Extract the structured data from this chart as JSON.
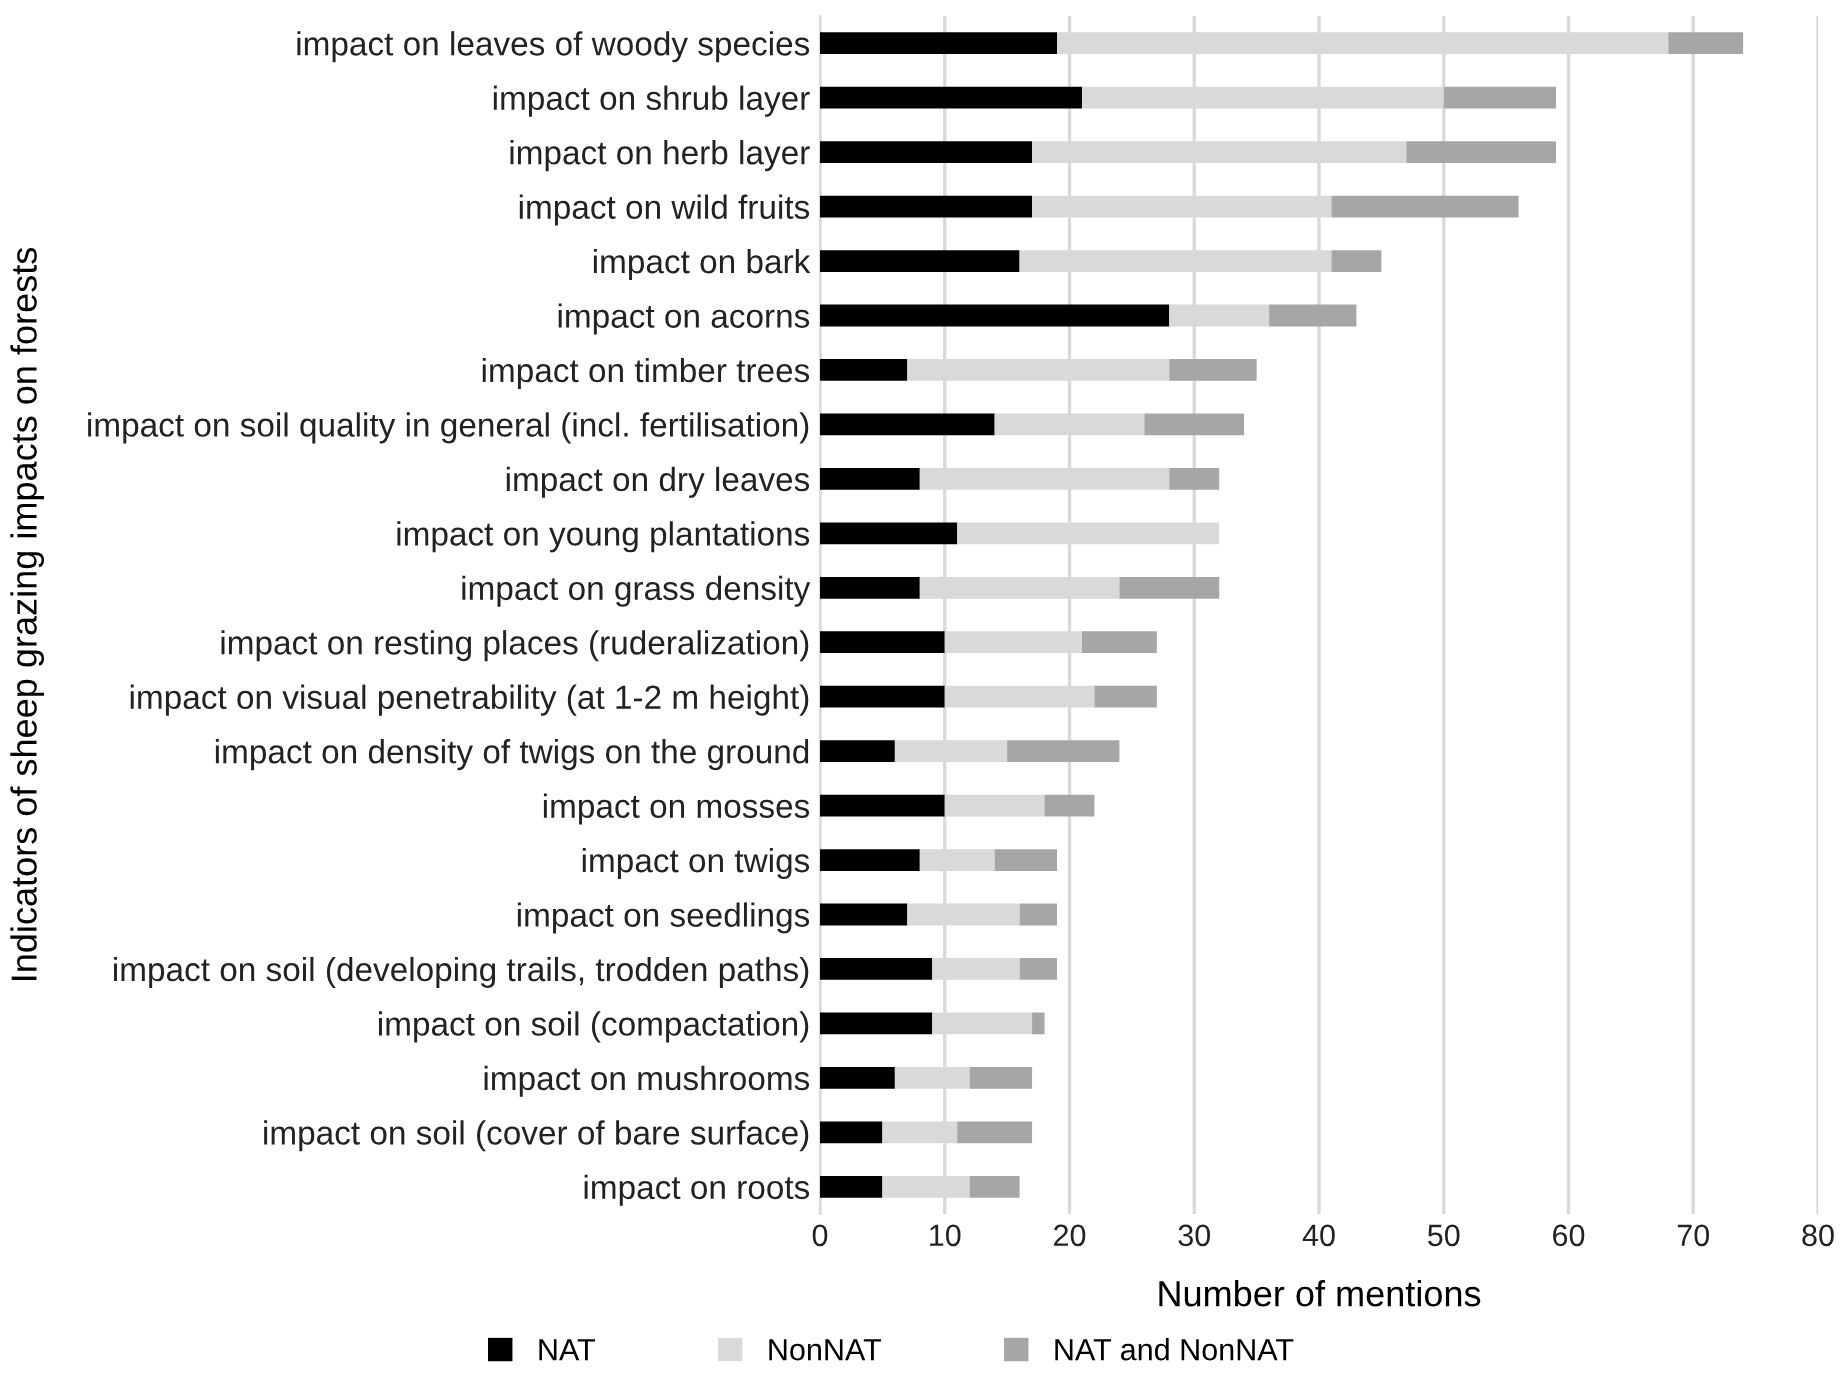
{
  "chart_data": {
    "type": "bar",
    "orientation": "horizontal",
    "stacked": true,
    "xlabel": "Number of mentions",
    "ylabel": "Indicators of sheep grazing impacts on forests",
    "categories": [
      "impact on leaves of woody species",
      "impact on shrub layer",
      "impact on herb layer",
      "impact on wild fruits",
      "impact on bark",
      "impact on acorns",
      "impact on timber trees",
      "impact on soil quality in general (incl. fertilisation)",
      "impact on dry leaves",
      "impact on young plantations",
      "impact on grass density",
      "impact on resting places (ruderalization)",
      "impact on visual penetrability (at 1-2 m height)",
      "impact on density of twigs on the ground",
      "impact on mosses",
      "impact on twigs",
      "impact on seedlings",
      "impact on soil (developing trails, trodden paths)",
      "impact on soil (compactation)",
      "impact on mushrooms",
      "impact on soil (cover of bare surface)",
      "impact on roots"
    ],
    "series": [
      {
        "name": "NAT",
        "color": "#000000",
        "values": [
          19,
          21,
          17,
          17,
          16,
          28,
          7,
          14,
          8,
          11,
          8,
          10,
          10,
          6,
          10,
          8,
          7,
          9,
          9,
          6,
          5,
          5
        ]
      },
      {
        "name": "NonNAT",
        "color": "#d9d9d9",
        "values": [
          49,
          29,
          30,
          24,
          25,
          8,
          21,
          12,
          20,
          21,
          16,
          11,
          12,
          9,
          8,
          6,
          9,
          7,
          8,
          6,
          6,
          7
        ]
      },
      {
        "name": "NAT and NonNAT",
        "color": "#a6a6a6",
        "values": [
          6,
          9,
          12,
          15,
          4,
          7,
          7,
          8,
          4,
          0,
          8,
          6,
          5,
          9,
          4,
          5,
          3,
          3,
          1,
          5,
          6,
          4
        ]
      }
    ],
    "xlim": [
      0,
      80
    ],
    "xticks": [
      0,
      10,
      20,
      30,
      40,
      50,
      60,
      70,
      80
    ],
    "grid": "x",
    "legend": "bottom left"
  }
}
